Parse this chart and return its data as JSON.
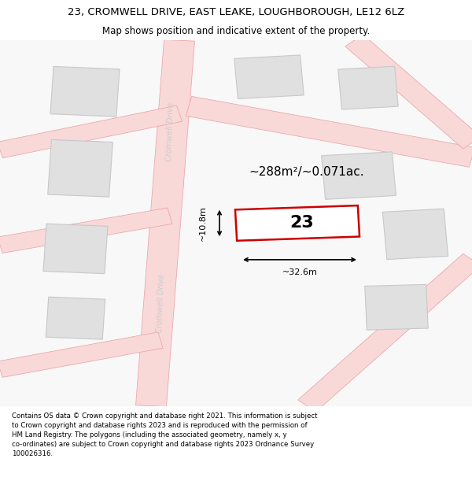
{
  "title_line1": "23, CROMWELL DRIVE, EAST LEAKE, LOUGHBOROUGH, LE12 6LZ",
  "title_line2": "Map shows position and indicative extent of the property.",
  "footer_text": "Contains OS data © Crown copyright and database right 2021. This information is subject\nto Crown copyright and database rights 2023 and is reproduced with the permission of\nHM Land Registry. The polygons (including the associated geometry, namely x, y\nco-ordinates) are subject to Crown copyright and database rights 2023 Ordnance Survey\n100026316.",
  "bg_color": "#ffffff",
  "map_bg": "#f8f8f8",
  "road_fill": "#f9d8d8",
  "road_edge": "#e8a0a0",
  "road_lw": 0.5,
  "building_fill": "#e0e0e0",
  "building_edge": "#c8c8c8",
  "building_lw": 0.8,
  "highlight_fill": "#ffffff",
  "highlight_edge": "#cc0000",
  "highlight_lw": 1.8,
  "road_label": "Cromwell Drive",
  "road_label_color": "#cccccc",
  "area_label": "~288m²/~0.071ac.",
  "plot_number": "23",
  "dim_width": "~32.6m",
  "dim_height": "~10.8m",
  "title_fontsize": 9.5,
  "subtitle_fontsize": 8.5,
  "footer_fontsize": 6.2,
  "area_label_fontsize": 11,
  "plot_num_fontsize": 16,
  "dim_fontsize": 8
}
